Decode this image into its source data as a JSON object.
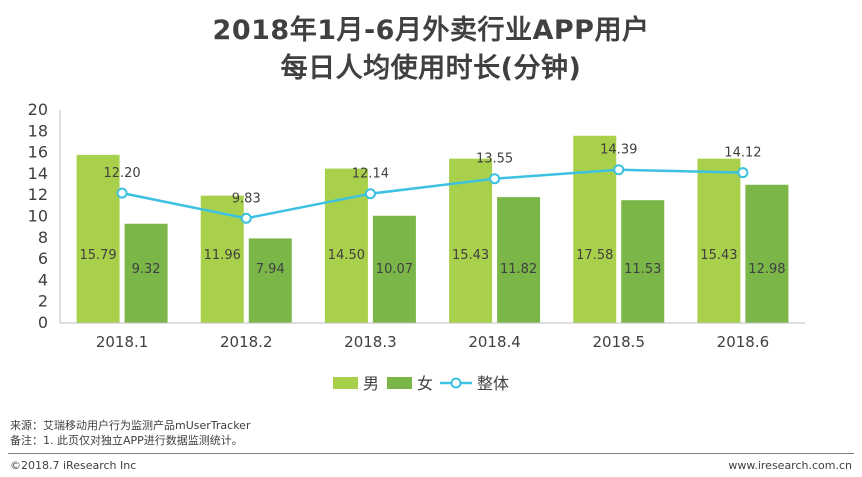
{
  "title_line1": "2018年1月-6月外卖行业APP用户",
  "title_line2": "每日人均使用时长(分钟)",
  "source_line": "来源：艾瑞移动用户行为监测产品mUserTracker",
  "note_line": "备注：1. 此页仅对独立APP进行数据监测统计。",
  "copyright": "©2018.7 iResearch Inc",
  "website": "www.iresearch.com.cn",
  "colors": {
    "male": "#A9D04B",
    "female": "#7AB648",
    "overall": "#3CC2E0",
    "axis": "#BFBFBF",
    "text": "#404040"
  },
  "chart_data": {
    "type": "bar",
    "title": "2018年1月-6月外卖行业APP用户每日人均使用时长(分钟)",
    "categories": [
      "2018.1",
      "2018.2",
      "2018.3",
      "2018.4",
      "2018.5",
      "2018.6"
    ],
    "ylim": [
      0,
      20
    ],
    "yticks": [
      0,
      2,
      4,
      6,
      8,
      10,
      12,
      14,
      16,
      18,
      20
    ],
    "legend_position": "bottom-center",
    "series": [
      {
        "name": "男",
        "type": "bar",
        "values": [
          15.79,
          11.96,
          14.5,
          15.43,
          17.58,
          15.43
        ],
        "labels": [
          "15.79",
          "11.96",
          "14.50",
          "15.43",
          "17.58",
          "15.43"
        ]
      },
      {
        "name": "女",
        "type": "bar",
        "values": [
          9.32,
          7.94,
          10.07,
          11.82,
          11.53,
          12.98
        ],
        "labels": [
          "9.32",
          "7.94",
          "10.07",
          "11.82",
          "11.53",
          "12.98"
        ]
      },
      {
        "name": "整体",
        "type": "line",
        "values": [
          12.2,
          9.83,
          12.14,
          13.55,
          14.39,
          14.12
        ],
        "labels": [
          "12.20",
          "9.83",
          "12.14",
          "13.55",
          "14.39",
          "14.12"
        ]
      }
    ]
  }
}
